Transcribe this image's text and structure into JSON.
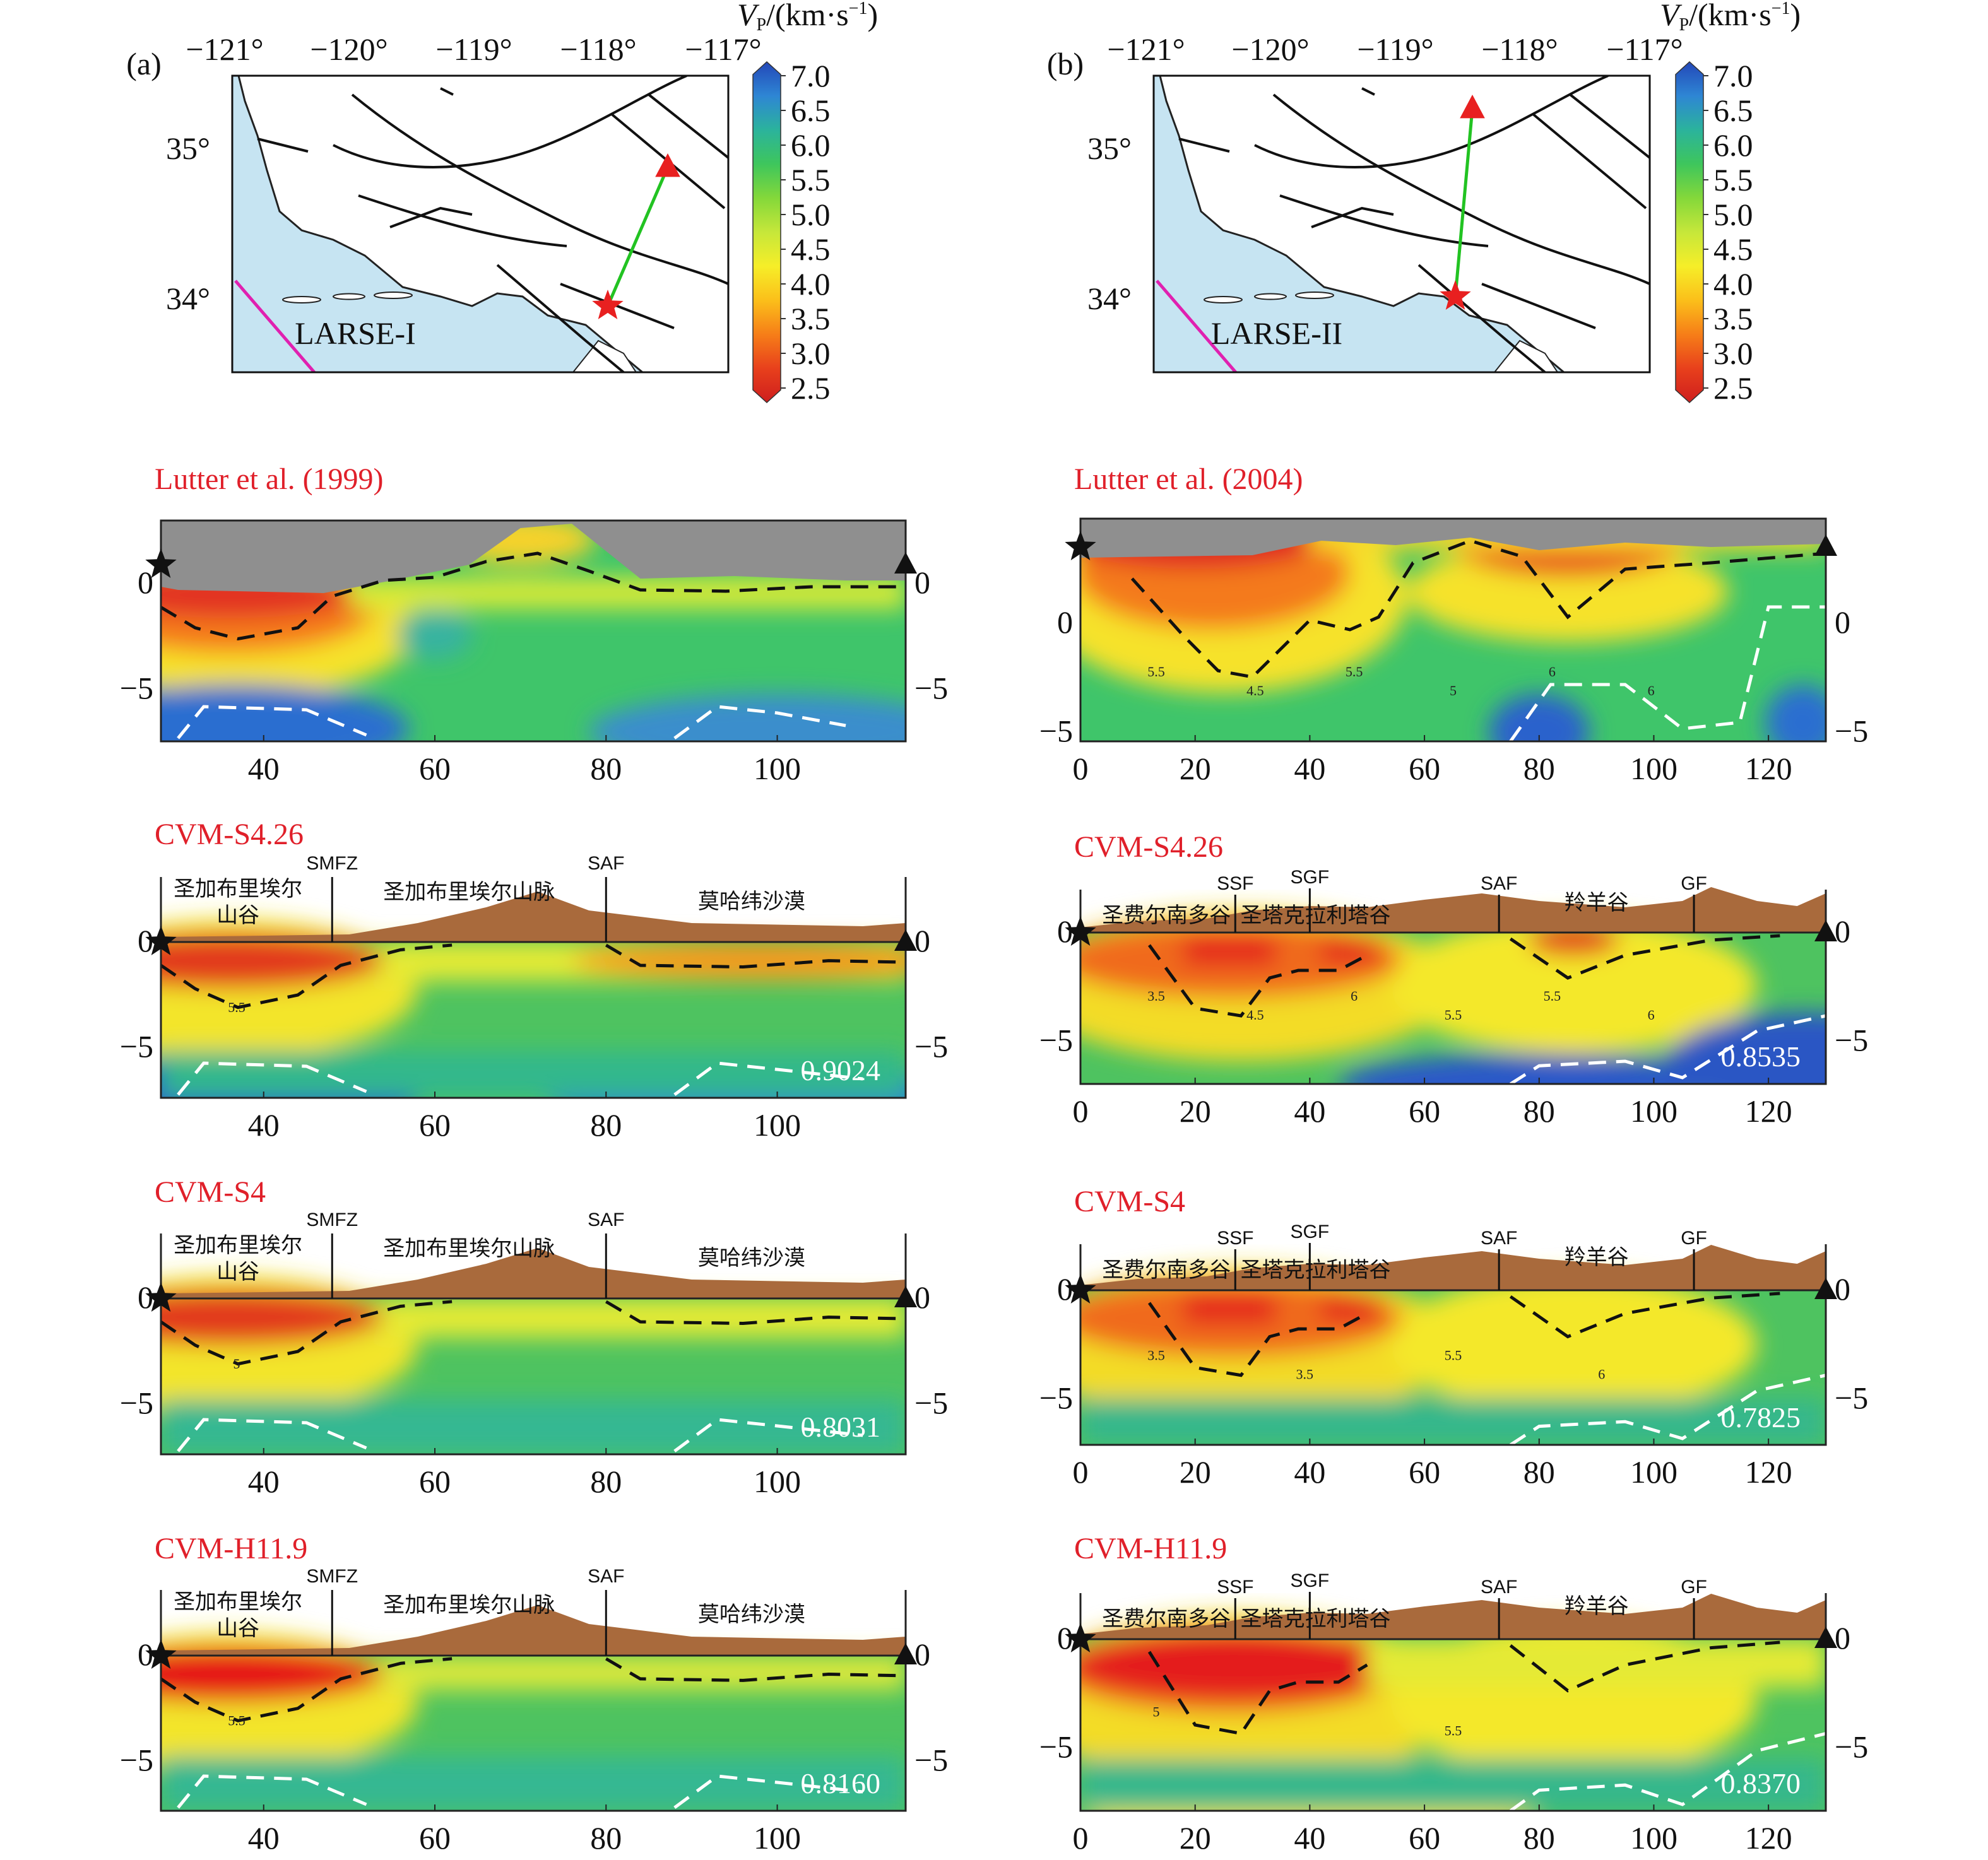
{
  "colors": {
    "title_red": "#e0202a",
    "ocean": "#c6e4f2",
    "topo": "#a96a3c",
    "sky_gray": "#8f8f8f",
    "route_green": "#22c322",
    "marker_red": "#e82020",
    "fault_pink": "#e020b0",
    "scale": [
      "#ce1e1e",
      "#e8401c",
      "#f67e18",
      "#fbbf1a",
      "#f6ee28",
      "#c6e73a",
      "#84d83a",
      "#3ec65c",
      "#2bb39c",
      "#2e86d4",
      "#2347b8"
    ]
  },
  "colorbar": {
    "label": "V",
    "label_sub": "P",
    "label_unit": "/(km·s",
    "label_exp": "−1",
    "label_close": ")",
    "ticks": [
      "7.0",
      "6.5",
      "6.0",
      "5.5",
      "5.0",
      "4.5",
      "4.0",
      "3.5",
      "3.0",
      "2.5"
    ]
  },
  "maps": [
    {
      "panel_letter": "(a)",
      "lon_ticks": [
        "−121°",
        "−120°",
        "−119°",
        "−118°",
        "−117°"
      ],
      "lat_ticks": [
        "35°",
        "34°"
      ],
      "profile_label": "LARSE-I"
    },
    {
      "panel_letter": "(b)",
      "lon_ticks": [
        "−121°",
        "−120°",
        "−119°",
        "−118°",
        "−117°"
      ],
      "lat_ticks": [
        "35°",
        "34°"
      ],
      "profile_label": "LARSE-II"
    }
  ],
  "sections": [
    {
      "id": "a1",
      "col": 0,
      "title": "Lutter et al. (1999)",
      "kind": "tomo",
      "x_ticks": [
        "40",
        "60",
        "80",
        "100"
      ],
      "x_range": [
        28,
        115
      ],
      "y_ticks_left": [
        "0",
        "−5"
      ],
      "y_ticks_right": [
        "0",
        "−5"
      ]
    },
    {
      "id": "b1",
      "col": 1,
      "title": "Lutter et al. (2004)",
      "kind": "tomo",
      "x_ticks": [
        "0",
        "20",
        "40",
        "60",
        "80",
        "100",
        "120"
      ],
      "x_range": [
        0,
        130
      ],
      "y_ticks_left": [
        "0",
        "−5"
      ],
      "y_ticks_right": [
        "0",
        "−5"
      ],
      "contours": [
        "5.5",
        "4.5",
        "5.5",
        "5",
        "6",
        "6"
      ]
    },
    {
      "id": "a2",
      "col": 0,
      "title": "CVM-S4.26",
      "kind": "model",
      "score": "0.9024",
      "x_ticks": [
        "40",
        "60",
        "80",
        "100"
      ],
      "x_range": [
        28,
        115
      ],
      "y_ticks_left": [
        "0",
        "−5"
      ],
      "y_ticks_right": [
        "0",
        "−5"
      ],
      "faults": [
        "SMFZ",
        "SAF"
      ],
      "regions": [
        "圣加布里埃尔",
        "山谷",
        "圣加布里埃尔山脉",
        "莫哈纬沙漠"
      ],
      "contours": [
        "5.5"
      ]
    },
    {
      "id": "b2",
      "col": 1,
      "title": "CVM-S4.26",
      "kind": "model",
      "score": "0.8535",
      "x_ticks": [
        "0",
        "20",
        "40",
        "60",
        "80",
        "100",
        "120"
      ],
      "x_range": [
        0,
        130
      ],
      "y_ticks_left": [
        "0",
        "−5"
      ],
      "y_ticks_right": [
        "0",
        "−5"
      ],
      "faults": [
        "SSF",
        "SGF",
        "SAF",
        "GF"
      ],
      "regions": [
        "圣费尔南多谷",
        "圣塔克拉利塔谷",
        "羚羊谷"
      ],
      "contours": [
        "3.5",
        "4.5",
        "6",
        "5.5",
        "5.5",
        "6"
      ]
    },
    {
      "id": "a3",
      "col": 0,
      "title": "CVM-S4",
      "kind": "model",
      "score": "0.8031",
      "x_ticks": [
        "40",
        "60",
        "80",
        "100"
      ],
      "x_range": [
        28,
        115
      ],
      "y_ticks_left": [
        "0",
        "−5"
      ],
      "y_ticks_right": [
        "0",
        "−5"
      ],
      "faults": [
        "SMFZ",
        "SAF"
      ],
      "regions": [
        "圣加布里埃尔",
        "山谷",
        "圣加布里埃尔山脉",
        "莫哈纬沙漠"
      ],
      "contours": [
        "5"
      ]
    },
    {
      "id": "b3",
      "col": 1,
      "title": "CVM-S4",
      "kind": "model",
      "score": "0.7825",
      "x_ticks": [
        "0",
        "20",
        "40",
        "60",
        "80",
        "100",
        "120"
      ],
      "x_range": [
        0,
        130
      ],
      "y_ticks_left": [
        "0",
        "−5"
      ],
      "y_ticks_right": [
        "0",
        "−5"
      ],
      "faults": [
        "SSF",
        "SGF",
        "SAF",
        "GF"
      ],
      "regions": [
        "圣费尔南多谷",
        "圣塔克拉利塔谷",
        "羚羊谷"
      ],
      "contours": [
        "3.5",
        "3.5",
        "5.5",
        "6"
      ]
    },
    {
      "id": "a4",
      "col": 0,
      "title": "CVM-H11.9",
      "kind": "model",
      "score": "0.8160",
      "x_ticks": [
        "40",
        "60",
        "80",
        "100"
      ],
      "x_range": [
        28,
        115
      ],
      "y_ticks_left": [
        "0",
        "−5"
      ],
      "y_ticks_right": [
        "0",
        "−5"
      ],
      "faults": [
        "SMFZ",
        "SAF"
      ],
      "regions": [
        "圣加布里埃尔",
        "山谷",
        "圣加布里埃尔山脉",
        "莫哈纬沙漠"
      ],
      "contours": [
        "5.5"
      ]
    },
    {
      "id": "b4",
      "col": 1,
      "title": "CVM-H11.9",
      "kind": "model",
      "score": "0.8370",
      "x_ticks": [
        "0",
        "20",
        "40",
        "60",
        "80",
        "100",
        "120"
      ],
      "x_range": [
        0,
        130
      ],
      "y_ticks_left": [
        "0",
        "−5"
      ],
      "y_ticks_right": [
        "0",
        "−5"
      ],
      "faults": [
        "SSF",
        "SGF",
        "SAF",
        "GF"
      ],
      "regions": [
        "圣费尔南多谷",
        "圣塔克拉利塔谷",
        "羚羊谷"
      ],
      "contours": [
        "5",
        "5.5"
      ]
    }
  ]
}
